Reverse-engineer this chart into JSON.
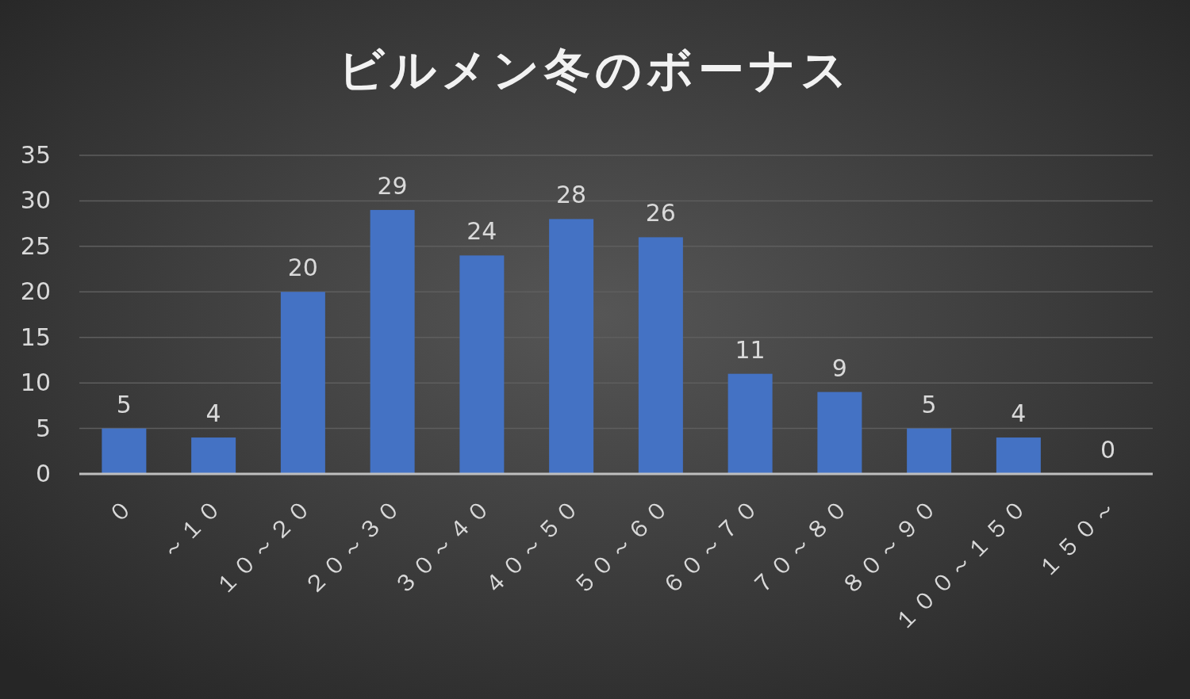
{
  "chart_data": {
    "type": "bar",
    "title": "ビルメン冬のボーナス",
    "categories": [
      "０",
      "～１０",
      "１０～２０",
      "２０～３０",
      "３０～４０",
      "４０～５０",
      "５０～６０",
      "６０～７０",
      "７０～８０",
      "８０～９０",
      "１００～１５０",
      "１５０～"
    ],
    "values": [
      5,
      4,
      20,
      29,
      24,
      28,
      26,
      11,
      9,
      5,
      4,
      0
    ],
    "color": "#4472c4",
    "ylim": [
      0,
      35
    ],
    "yticks": [
      0,
      5,
      10,
      15,
      20,
      25,
      30,
      35
    ],
    "grid": "y",
    "data_labels": true
  }
}
